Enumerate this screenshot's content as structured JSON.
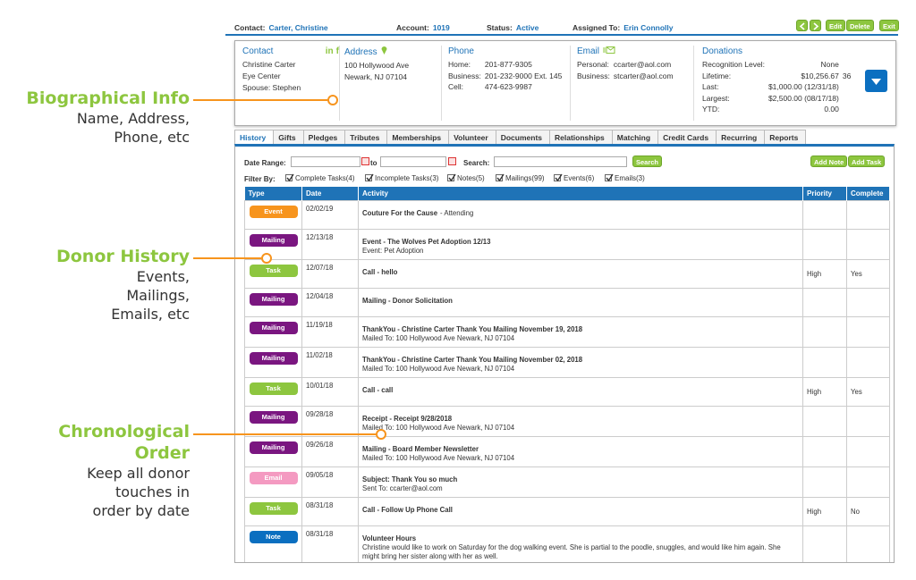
{
  "annotations": [
    {
      "title": "Biographical Info",
      "lines": [
        "Name, Address,",
        "Phone, etc"
      ]
    },
    {
      "title": "Donor History",
      "lines": [
        "Events,",
        "Mailings,",
        "Emails, etc"
      ]
    },
    {
      "title": "Chronological Order",
      "lines": [
        "Keep all donor",
        "touches in",
        "order by date"
      ]
    }
  ],
  "header": {
    "items": [
      {
        "label": "Contact:",
        "value": "Carter, Christine"
      },
      {
        "label": "Account:",
        "value": "1019"
      },
      {
        "label": "Status:",
        "value": "Active"
      },
      {
        "label": "Assigned To:",
        "value": "Erin Connolly"
      }
    ],
    "buttons": [
      "Edit",
      "Delete",
      "Exit"
    ]
  },
  "info": {
    "contact": {
      "label": "Contact",
      "social": [
        "in",
        "f"
      ],
      "lines": [
        "Christine Carter",
        "Eye Center",
        "Spouse: Stephen"
      ]
    },
    "address": {
      "label": "Address",
      "lines": [
        "100 Hollywood Ave",
        "Newark, NJ 07104"
      ]
    },
    "phone": {
      "label": "Phone",
      "rows": [
        [
          "Home:",
          "201-877-9305"
        ],
        [
          "Business:",
          "201-232-9000 Ext. 145"
        ],
        [
          "Cell:",
          "474-623-9987"
        ]
      ]
    },
    "email": {
      "label": "Email",
      "rows": [
        [
          "Personal:",
          "ccarter@aol.com"
        ],
        [
          "Business:",
          "stcarter@aol.com"
        ]
      ]
    },
    "donations": {
      "label": "Donations",
      "rows": [
        [
          "Recognition Level:",
          "None"
        ],
        [
          "Lifetime:",
          "$10,256.67",
          "36"
        ],
        [
          "Last:",
          "$1,000.00 (12/31/18)"
        ],
        [
          "Largest:",
          "$2,500.00 (08/17/18)"
        ],
        [
          "YTD:",
          "0.00"
        ]
      ]
    }
  },
  "tabs": [
    "History",
    "Gifts",
    "Pledges",
    "Tributes",
    "Memberships",
    "Volunteer",
    "Documents",
    "Relationships",
    "Matching",
    "Credit Cards",
    "Recurring",
    "Reports"
  ],
  "filters": {
    "date_range": "Date Range:",
    "to": "to",
    "search": "Search:",
    "search_button": "Search",
    "add_buttons": [
      "Add Note",
      "Add Task"
    ],
    "filter_by": "Filter By:",
    "checks": [
      "Complete Tasks(4)",
      "Incomplete Tasks(3)",
      "Notes(5)",
      "Mailings(99)",
      "Events(6)",
      "Emails(3)"
    ]
  },
  "table": {
    "columns": [
      "Type",
      "Date",
      "Activity",
      "Priority",
      "Complete"
    ],
    "type_colors": {
      "Event": "#f7941d",
      "Mailing": "#7a1680",
      "Task": "#8dc63f",
      "Email": "#f49ac1",
      "Note": "#0b6fc0"
    },
    "rows": [
      {
        "type": "Event",
        "date": "02/02/19",
        "title": "Couture For the Cause",
        "suffix": "- Attending"
      },
      {
        "type": "Mailing",
        "date": "12/13/18",
        "title": "Event - The Wolves Pet Adoption 12/13",
        "detail": "Event: Pet Adoption"
      },
      {
        "type": "Task",
        "date": "12/07/18",
        "title": "Call - hello",
        "priority": "High",
        "complete": "Yes"
      },
      {
        "type": "Mailing",
        "date": "12/04/18",
        "title": "Mailing - Donor Solicitation"
      },
      {
        "type": "Mailing",
        "date": "11/19/18",
        "title": "ThankYou - Christine Carter Thank You Mailing November 19, 2018",
        "detail": "Mailed To: 100 Hollywood Ave Newark, NJ 07104"
      },
      {
        "type": "Mailing",
        "date": "11/02/18",
        "title": "ThankYou - Christine Carter Thank You Mailing November 02, 2018",
        "detail": "Mailed To: 100 Hollywood Ave Newark, NJ 07104"
      },
      {
        "type": "Task",
        "date": "10/01/18",
        "title": "Call - call",
        "priority": "High",
        "complete": "Yes"
      },
      {
        "type": "Mailing",
        "date": "09/28/18",
        "title": "Receipt - Receipt 9/28/2018",
        "detail": "Mailed To: 100 Hollywood Ave Newark, NJ 07104"
      },
      {
        "type": "Mailing",
        "date": "09/26/18",
        "title": "Mailing - Board Member Newsletter",
        "detail": "Mailed To: 100 Hollywood Ave Newark, NJ 07104"
      },
      {
        "type": "Email",
        "date": "09/05/18",
        "title": "Subject: Thank You so much",
        "detail": "Sent To: ccarter@aol.com"
      },
      {
        "type": "Task",
        "date": "08/31/18",
        "title": "Call - Follow Up Phone Call",
        "priority": "High",
        "complete": "No"
      },
      {
        "type": "Note",
        "date": "08/31/18",
        "title": "Volunteer Hours",
        "detail": "Christine would like to work on Saturday for the dog walking event. She is partial to the poodle, snuggles, and would like him again. She might bring her sister along with her as well."
      }
    ]
  }
}
